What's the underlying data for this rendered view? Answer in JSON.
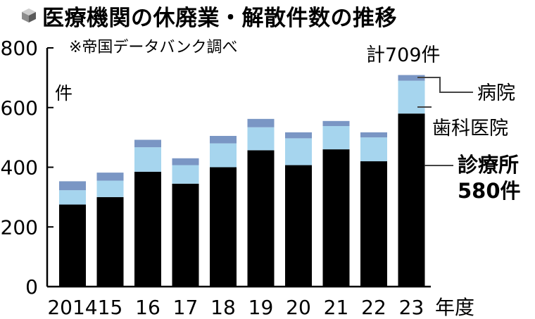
{
  "chart_data": {
    "type": "bar",
    "stacked": true,
    "title": "医療機関の休廃業・解散件数の推移",
    "source_note": "※帝国データバンク調べ",
    "y_unit_label": "件",
    "x_unit_label": "年度",
    "ylim": [
      0,
      800
    ],
    "yticks": [
      "0",
      "200",
      "400",
      "600",
      "800"
    ],
    "categories": [
      "2014",
      "15",
      "16",
      "17",
      "18",
      "19",
      "20",
      "21",
      "22",
      "23"
    ],
    "series": [
      {
        "name": "診療所",
        "color": "#000000",
        "values": [
          275,
          300,
          385,
          345,
          400,
          457,
          407,
          460,
          420,
          580
        ]
      },
      {
        "name": "歯科医院",
        "color": "#a6d5ee",
        "values": [
          48,
          55,
          82,
          62,
          80,
          77,
          90,
          78,
          80,
          110
        ]
      },
      {
        "name": "病院",
        "color": "#7a96c4",
        "values": [
          30,
          27,
          25,
          23,
          25,
          28,
          20,
          17,
          17,
          19
        ]
      }
    ],
    "annotations": {
      "total_label": "計709件",
      "clinic_value_label": "580件"
    },
    "grid": false,
    "legend": "right, callout labels"
  }
}
